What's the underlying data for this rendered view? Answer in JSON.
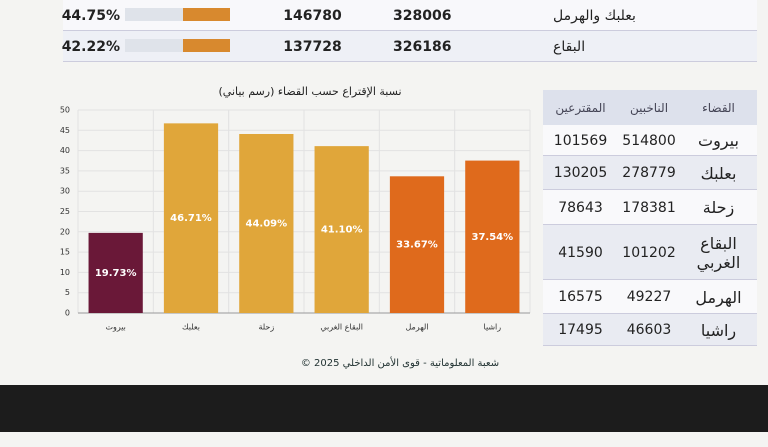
{
  "summary_table": {
    "rows": [
      [
        "44.75%",
        "146780",
        "328006",
        "بعلبك والهرمل"
      ],
      [
        "42.22%",
        "137728",
        "326186",
        "البقاع"
      ]
    ]
  },
  "district_table": {
    "header": [
      "القضاء",
      "الناخبين",
      "المقترعين"
    ],
    "rows": [
      [
        "بيروت",
        "514800",
        "101569"
      ],
      [
        "بعلبك",
        "278779",
        "130205"
      ],
      [
        "زحلة",
        "178381",
        "78643"
      ],
      [
        "البقاع الغربي",
        "101202",
        "41590"
      ],
      [
        "الهرمل",
        "49227",
        "16575"
      ],
      [
        "راشيا",
        "46603",
        "17495"
      ]
    ]
  },
  "chart_data": {
    "type": "bar",
    "title": "نسبة الإقتراع حسب القضاء (رسم بياني)",
    "categories": [
      "بيروت",
      "بعلبك",
      "زحلة",
      "البقاع الغربي",
      "الهرمل",
      "راشيا"
    ],
    "values": [
      19.73,
      46.71,
      44.09,
      41.1,
      33.67,
      37.54
    ],
    "value_labels": [
      "19.73%",
      "46.71%",
      "44.09%",
      "41.10%",
      "33.67%",
      "37.54%"
    ],
    "colors": [
      "#6a1838",
      "#e0a63a",
      "#e0a63a",
      "#e0a63a",
      "#df6a1c",
      "#df6a1c"
    ],
    "ylim": [
      0,
      50
    ],
    "yticks": [
      0,
      5,
      10,
      15,
      20,
      25,
      30,
      35,
      40,
      45,
      50
    ],
    "grid": true
  },
  "footer": "© شعبة المعلوماتية - قوى الأمن الداخلي 2025"
}
